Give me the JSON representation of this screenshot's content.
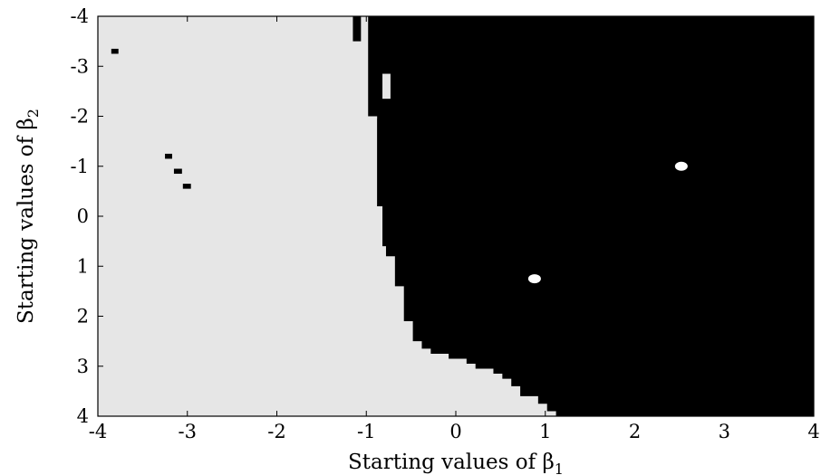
{
  "chart_data": {
    "type": "heatmap",
    "title": "",
    "xlabel": "Starting values of β",
    "xlabel_subscript": "1",
    "ylabel": "Starting values of β",
    "ylabel_subscript": "2",
    "xlim": [
      -4,
      4
    ],
    "ylim": [
      -4,
      4
    ],
    "y_axis_inverted": true,
    "xticks": [
      -4,
      -3,
      -2,
      -1,
      0,
      1,
      2,
      3,
      4
    ],
    "yticks": [
      -4,
      -3,
      -2,
      -1,
      0,
      1,
      2,
      3,
      4
    ],
    "xtick_labels": [
      "-4",
      "-3",
      "-2",
      "-1",
      "0",
      "1",
      "2",
      "3",
      "4"
    ],
    "ytick_labels": [
      "-4",
      "-3",
      "-2",
      "-1",
      "0",
      "1",
      "2",
      "3",
      "4"
    ],
    "grid": false,
    "colors": {
      "region_a": "#e6e6e6",
      "region_b": "#000000",
      "marker": "#ffffff",
      "axes": "#000000"
    },
    "boundary": [
      {
        "b2": -4.0,
        "b1": -0.98
      },
      {
        "b2": -2.0,
        "b1": -0.98
      },
      {
        "b2": -2.0,
        "b1": -0.88
      },
      {
        "b2": -0.2,
        "b1": -0.88
      },
      {
        "b2": -0.2,
        "b1": -0.82
      },
      {
        "b2": 0.6,
        "b1": -0.82
      },
      {
        "b2": 0.6,
        "b1": -0.78
      },
      {
        "b2": 0.8,
        "b1": -0.78
      },
      {
        "b2": 0.8,
        "b1": -0.68
      },
      {
        "b2": 1.4,
        "b1": -0.68
      },
      {
        "b2": 1.4,
        "b1": -0.58
      },
      {
        "b2": 2.1,
        "b1": -0.58
      },
      {
        "b2": 2.1,
        "b1": -0.48
      },
      {
        "b2": 2.5,
        "b1": -0.48
      },
      {
        "b2": 2.5,
        "b1": -0.38
      },
      {
        "b2": 2.65,
        "b1": -0.38
      },
      {
        "b2": 2.65,
        "b1": -0.28
      },
      {
        "b2": 2.75,
        "b1": -0.28
      },
      {
        "b2": 2.75,
        "b1": -0.08
      },
      {
        "b2": 2.85,
        "b1": -0.08
      },
      {
        "b2": 2.85,
        "b1": 0.12
      },
      {
        "b2": 2.95,
        "b1": 0.12
      },
      {
        "b2": 2.95,
        "b1": 0.22
      },
      {
        "b2": 3.05,
        "b1": 0.22
      },
      {
        "b2": 3.05,
        "b1": 0.42
      },
      {
        "b2": 3.15,
        "b1": 0.42
      },
      {
        "b2": 3.15,
        "b1": 0.52
      },
      {
        "b2": 3.25,
        "b1": 0.52
      },
      {
        "b2": 3.25,
        "b1": 0.62
      },
      {
        "b2": 3.4,
        "b1": 0.62
      },
      {
        "b2": 3.4,
        "b1": 0.72
      },
      {
        "b2": 3.6,
        "b1": 0.72
      },
      {
        "b2": 3.6,
        "b1": 0.92
      },
      {
        "b2": 3.75,
        "b1": 0.92
      },
      {
        "b2": 3.75,
        "b1": 1.02
      },
      {
        "b2": 3.9,
        "b1": 1.02
      },
      {
        "b2": 3.9,
        "b1": 1.12
      },
      {
        "b2": 4.0,
        "b1": 1.12
      }
    ],
    "patches": [
      {
        "color": "region_b",
        "b1": [
          -3.85,
          -3.77
        ],
        "b2": [
          -3.35,
          -3.25
        ]
      },
      {
        "color": "region_b",
        "b1": [
          -3.25,
          -3.17
        ],
        "b2": [
          -1.25,
          -1.15
        ]
      },
      {
        "color": "region_b",
        "b1": [
          -3.15,
          -3.06
        ],
        "b2": [
          -0.95,
          -0.85
        ]
      },
      {
        "color": "region_b",
        "b1": [
          -3.05,
          -2.96
        ],
        "b2": [
          -0.65,
          -0.55
        ]
      },
      {
        "color": "region_b",
        "b1": [
          -1.15,
          -1.06
        ],
        "b2": [
          -4.0,
          -3.5
        ]
      },
      {
        "color": "region_a",
        "b1": [
          -0.82,
          -0.73
        ],
        "b2": [
          -2.85,
          -2.35
        ]
      },
      {
        "color": "region_a",
        "b1": [
          -0.98,
          -0.88
        ],
        "b2": [
          -2.0,
          -1.95
        ]
      }
    ],
    "markers": [
      {
        "b1": 2.52,
        "b2": -1.0
      },
      {
        "b1": 0.88,
        "b2": 1.25
      }
    ]
  }
}
